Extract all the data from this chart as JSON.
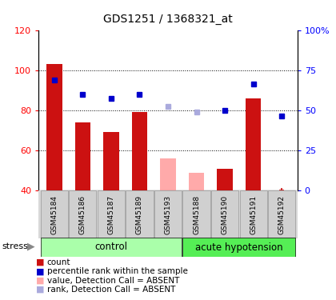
{
  "title": "GDS1251 / 1368321_at",
  "samples": [
    "GSM45184",
    "GSM45186",
    "GSM45187",
    "GSM45189",
    "GSM45193",
    "GSM45188",
    "GSM45190",
    "GSM45191",
    "GSM45192"
  ],
  "bar_values": [
    103,
    74,
    69,
    79,
    56,
    49,
    51,
    86,
    null
  ],
  "bar_absent": [
    false,
    false,
    false,
    false,
    true,
    true,
    false,
    false,
    false
  ],
  "rank_values": [
    95,
    88,
    86,
    88,
    82,
    79,
    80,
    93,
    77
  ],
  "rank_absent": [
    false,
    false,
    false,
    false,
    true,
    true,
    false,
    false,
    false
  ],
  "ymin": 40,
  "ymax": 120,
  "yticks": [
    40,
    60,
    80,
    100,
    120
  ],
  "right_yticks_vals": [
    0,
    25,
    50,
    75,
    100
  ],
  "right_yticks_labels": [
    "0",
    "25",
    "50",
    "75",
    "100%"
  ],
  "bar_color_present": "#cc1111",
  "bar_color_absent": "#ffaaaa",
  "rank_color_present": "#0000cc",
  "rank_color_absent": "#aaaadd",
  "control_color": "#aaffaa",
  "acute_color": "#55ee55",
  "control_label": "control",
  "acute_label": "acute hypotension",
  "stress_label": "stress",
  "legend_items": [
    [
      "#cc1111",
      "count"
    ],
    [
      "#0000cc",
      "percentile rank within the sample"
    ],
    [
      "#ffaaaa",
      "value, Detection Call = ABSENT"
    ],
    [
      "#aaaadd",
      "rank, Detection Call = ABSENT"
    ]
  ]
}
